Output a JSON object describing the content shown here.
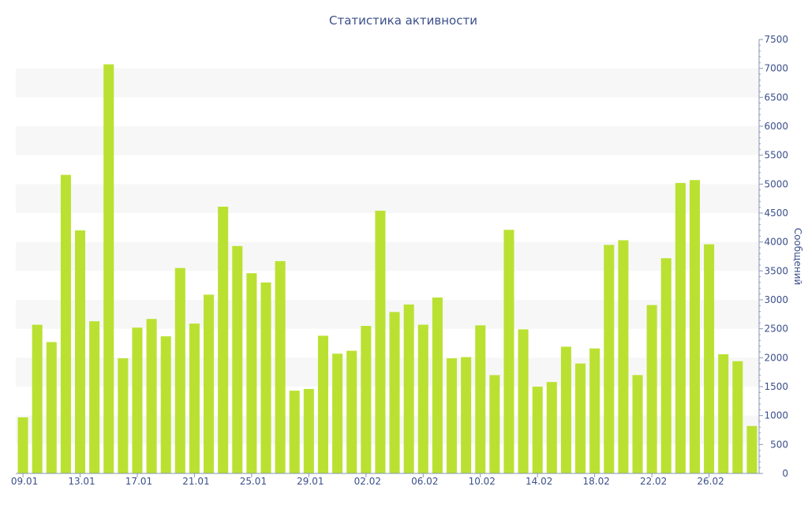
{
  "chart_data": {
    "type": "bar",
    "title": "Статистика активности",
    "xlabel": "",
    "ylabel": "Сообщений",
    "ylim": [
      0,
      7500
    ],
    "y_ticks": [
      0,
      500,
      1000,
      1500,
      2000,
      2500,
      3000,
      3500,
      4000,
      4500,
      5000,
      5500,
      6000,
      6500,
      7000,
      7500
    ],
    "y_axis_position": "right",
    "x_tick_labels": [
      "09.01",
      "13.01",
      "17.01",
      "21.01",
      "25.01",
      "29.01",
      "02.02",
      "06.02",
      "10.02",
      "14.02",
      "18.02",
      "22.02",
      "26.02"
    ],
    "x_tick_every": 4,
    "categories": [
      "09.01",
      "10.01",
      "11.01",
      "12.01",
      "13.01",
      "14.01",
      "15.01",
      "16.01",
      "17.01",
      "18.01",
      "19.01",
      "20.01",
      "21.01",
      "22.01",
      "23.01",
      "24.01",
      "25.01",
      "26.01",
      "27.01",
      "28.01",
      "29.01",
      "30.01",
      "31.01",
      "01.02",
      "02.02",
      "03.02",
      "04.02",
      "05.02",
      "06.02",
      "07.02",
      "08.02",
      "09.02",
      "10.02",
      "11.02",
      "12.02",
      "13.02",
      "14.02",
      "15.02",
      "16.02",
      "17.02",
      "18.02",
      "19.02",
      "20.02",
      "21.02",
      "22.02",
      "23.02",
      "24.02",
      "25.02",
      "26.02",
      "27.02",
      "28.02",
      "01.03"
    ],
    "values": [
      970,
      2570,
      2270,
      5160,
      4200,
      2630,
      7070,
      1990,
      2520,
      2670,
      2370,
      3550,
      2590,
      3090,
      4610,
      3930,
      3460,
      3300,
      3670,
      1430,
      1460,
      2380,
      2070,
      2120,
      2550,
      4540,
      2790,
      2920,
      2570,
      3040,
      1990,
      2010,
      2560,
      1700,
      4210,
      2490,
      1500,
      1580,
      2190,
      1900,
      2160,
      3950,
      4030,
      1700,
      2910,
      3720,
      5020,
      5070,
      3960,
      2060,
      1940,
      820
    ],
    "grid": "horizontal-bands",
    "colors": {
      "bar": "#bae132",
      "band": "#f7f7f7",
      "axis": "#8796b6",
      "text": "#3b4f8a"
    }
  }
}
